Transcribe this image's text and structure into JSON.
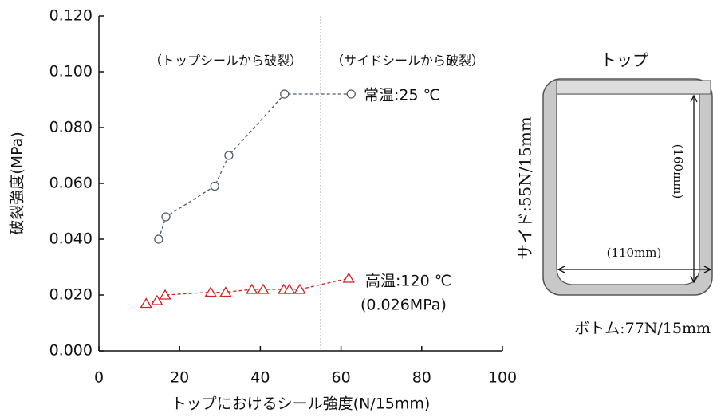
{
  "chart_data": {
    "type": "line",
    "x_label": "トップにおけるシール強度(N/15mm)",
    "y_label": "破裂強度(MPa)",
    "xlim": [
      0,
      100
    ],
    "xticks": [
      0,
      20,
      40,
      60,
      80,
      100
    ],
    "ylim": [
      0,
      0.12
    ],
    "yticks": [
      {
        "value": 0,
        "label": "0.000"
      },
      {
        "value": 0.02,
        "label": "0.020"
      },
      {
        "value": 0.04,
        "label": "0.040"
      },
      {
        "value": 0.06,
        "label": "0.060"
      },
      {
        "value": 0.08,
        "label": "0.080"
      },
      {
        "value": 0.1,
        "label": "0.100"
      },
      {
        "value": 0.12,
        "label": "0.120"
      }
    ],
    "divider_x": 55,
    "series": [
      {
        "name": "常温:25 ℃",
        "color": "#4a5a72",
        "marker": "circle",
        "x": [
          14.8,
          16.6,
          28.7,
          32.2,
          46.0,
          62.5
        ],
        "values": [
          0.04,
          0.048,
          0.059,
          0.07,
          0.092,
          0.092
        ]
      },
      {
        "name": "高温:120 ℃",
        "color": "#d42020",
        "marker": "triangle",
        "x": [
          11.7,
          14.4,
          16.4,
          27.7,
          31.4,
          37.9,
          40.7,
          45.8,
          47.2,
          49.8,
          61.9
        ],
        "values": [
          0.017,
          0.018,
          0.02,
          0.021,
          0.021,
          0.022,
          0.022,
          0.022,
          0.022,
          0.022,
          0.026
        ]
      }
    ],
    "annotations": [
      "（トップシールから破裂）",
      "（サイドシールから破裂）",
      "(0.026MPa)"
    ]
  },
  "diagram": {
    "top": "トップ",
    "side": "サイド:55N/15mm",
    "bottom": "ボトム:77N/15mm",
    "height": "(160mm)",
    "width": "(110mm)"
  }
}
